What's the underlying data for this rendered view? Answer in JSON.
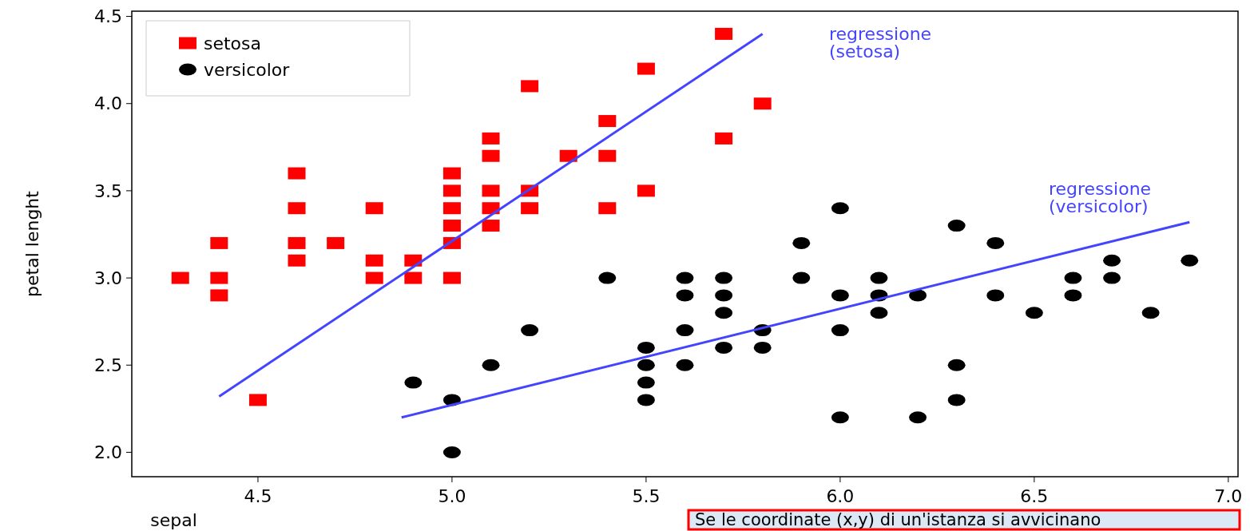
{
  "chart_data": {
    "type": "scatter",
    "xlabel": "sepal",
    "ylabel": "petal lenght",
    "xlim": [
      4.175,
      7.025
    ],
    "ylim": [
      1.86,
      4.53
    ],
    "xticks": [
      4.5,
      {
        "value": 5,
        "label": "5.0"
      },
      5.5,
      {
        "value": 6,
        "label": "6.0"
      },
      6.5,
      {
        "value": 7,
        "label": "7.0"
      }
    ],
    "yticks": [
      {
        "value": 2,
        "label": "2.0"
      },
      2.5,
      {
        "value": 3,
        "label": "3.0"
      },
      3.5,
      {
        "value": 4,
        "label": "4.0"
      },
      4.5
    ],
    "grid": false,
    "legend": "top left",
    "series": [
      {
        "name": "setosa",
        "color": "#ff0000",
        "marker": "square",
        "x": [
          4.3,
          4.4,
          4.4,
          4.4,
          4.5,
          4.6,
          4.6,
          4.6,
          4.6,
          4.7,
          4.8,
          4.8,
          4.8,
          4.9,
          4.9,
          5.0,
          5.0,
          5.0,
          5.0,
          5.0,
          5.0,
          5.1,
          5.1,
          5.1,
          5.1,
          5.1,
          5.2,
          5.2,
          5.2,
          5.3,
          5.4,
          5.4,
          5.4,
          5.5,
          5.5,
          5.7,
          5.7,
          5.8
        ],
        "values": [
          3.0,
          3.2,
          3.0,
          2.9,
          2.3,
          3.6,
          3.4,
          3.2,
          3.1,
          3.2,
          3.4,
          3.1,
          3.0,
          3.1,
          3.0,
          3.6,
          3.5,
          3.4,
          3.3,
          3.2,
          3.0,
          3.8,
          3.7,
          3.5,
          3.4,
          3.3,
          4.1,
          3.5,
          3.4,
          3.7,
          3.9,
          3.7,
          3.4,
          4.2,
          3.5,
          4.4,
          3.8,
          4.0
        ]
      },
      {
        "name": "versicolor",
        "color": "#000000",
        "marker": "circle",
        "x": [
          4.9,
          5.0,
          5.0,
          5.1,
          5.2,
          5.4,
          5.5,
          5.5,
          5.5,
          5.5,
          5.6,
          5.6,
          5.6,
          5.6,
          5.7,
          5.7,
          5.7,
          5.7,
          5.8,
          5.8,
          5.9,
          5.9,
          6.0,
          6.0,
          6.0,
          6.0,
          6.1,
          6.1,
          6.1,
          6.2,
          6.2,
          6.3,
          6.3,
          6.3,
          6.4,
          6.4,
          6.5,
          6.6,
          6.6,
          6.7,
          6.7,
          6.8,
          6.9
        ],
        "values": [
          2.4,
          2.3,
          2.0,
          2.5,
          2.7,
          3.0,
          2.6,
          2.5,
          2.4,
          2.3,
          3.0,
          2.9,
          2.7,
          2.5,
          3.0,
          2.9,
          2.8,
          2.6,
          2.7,
          2.6,
          3.2,
          3.0,
          3.4,
          2.9,
          2.7,
          2.2,
          3.0,
          2.9,
          2.8,
          2.9,
          2.2,
          3.3,
          2.5,
          2.3,
          3.2,
          2.9,
          2.8,
          3.0,
          2.9,
          3.1,
          3.0,
          2.8,
          3.1
        ]
      },
      {
        "type": "line",
        "color": "#4444ff",
        "marker": "none",
        "x": [
          4.4,
          5.8
        ],
        "values": [
          2.32,
          4.4
        ]
      },
      {
        "type": "line",
        "color": "#4444ff",
        "marker": "none",
        "x": [
          4.87,
          6.9
        ],
        "values": [
          2.2,
          3.32
        ]
      }
    ],
    "annotations": [
      "regressione\n(setosa)",
      "regressione\n(versicolor)",
      "Se le coordinate (x,y) di un'istanza si avvicinano"
    ]
  }
}
